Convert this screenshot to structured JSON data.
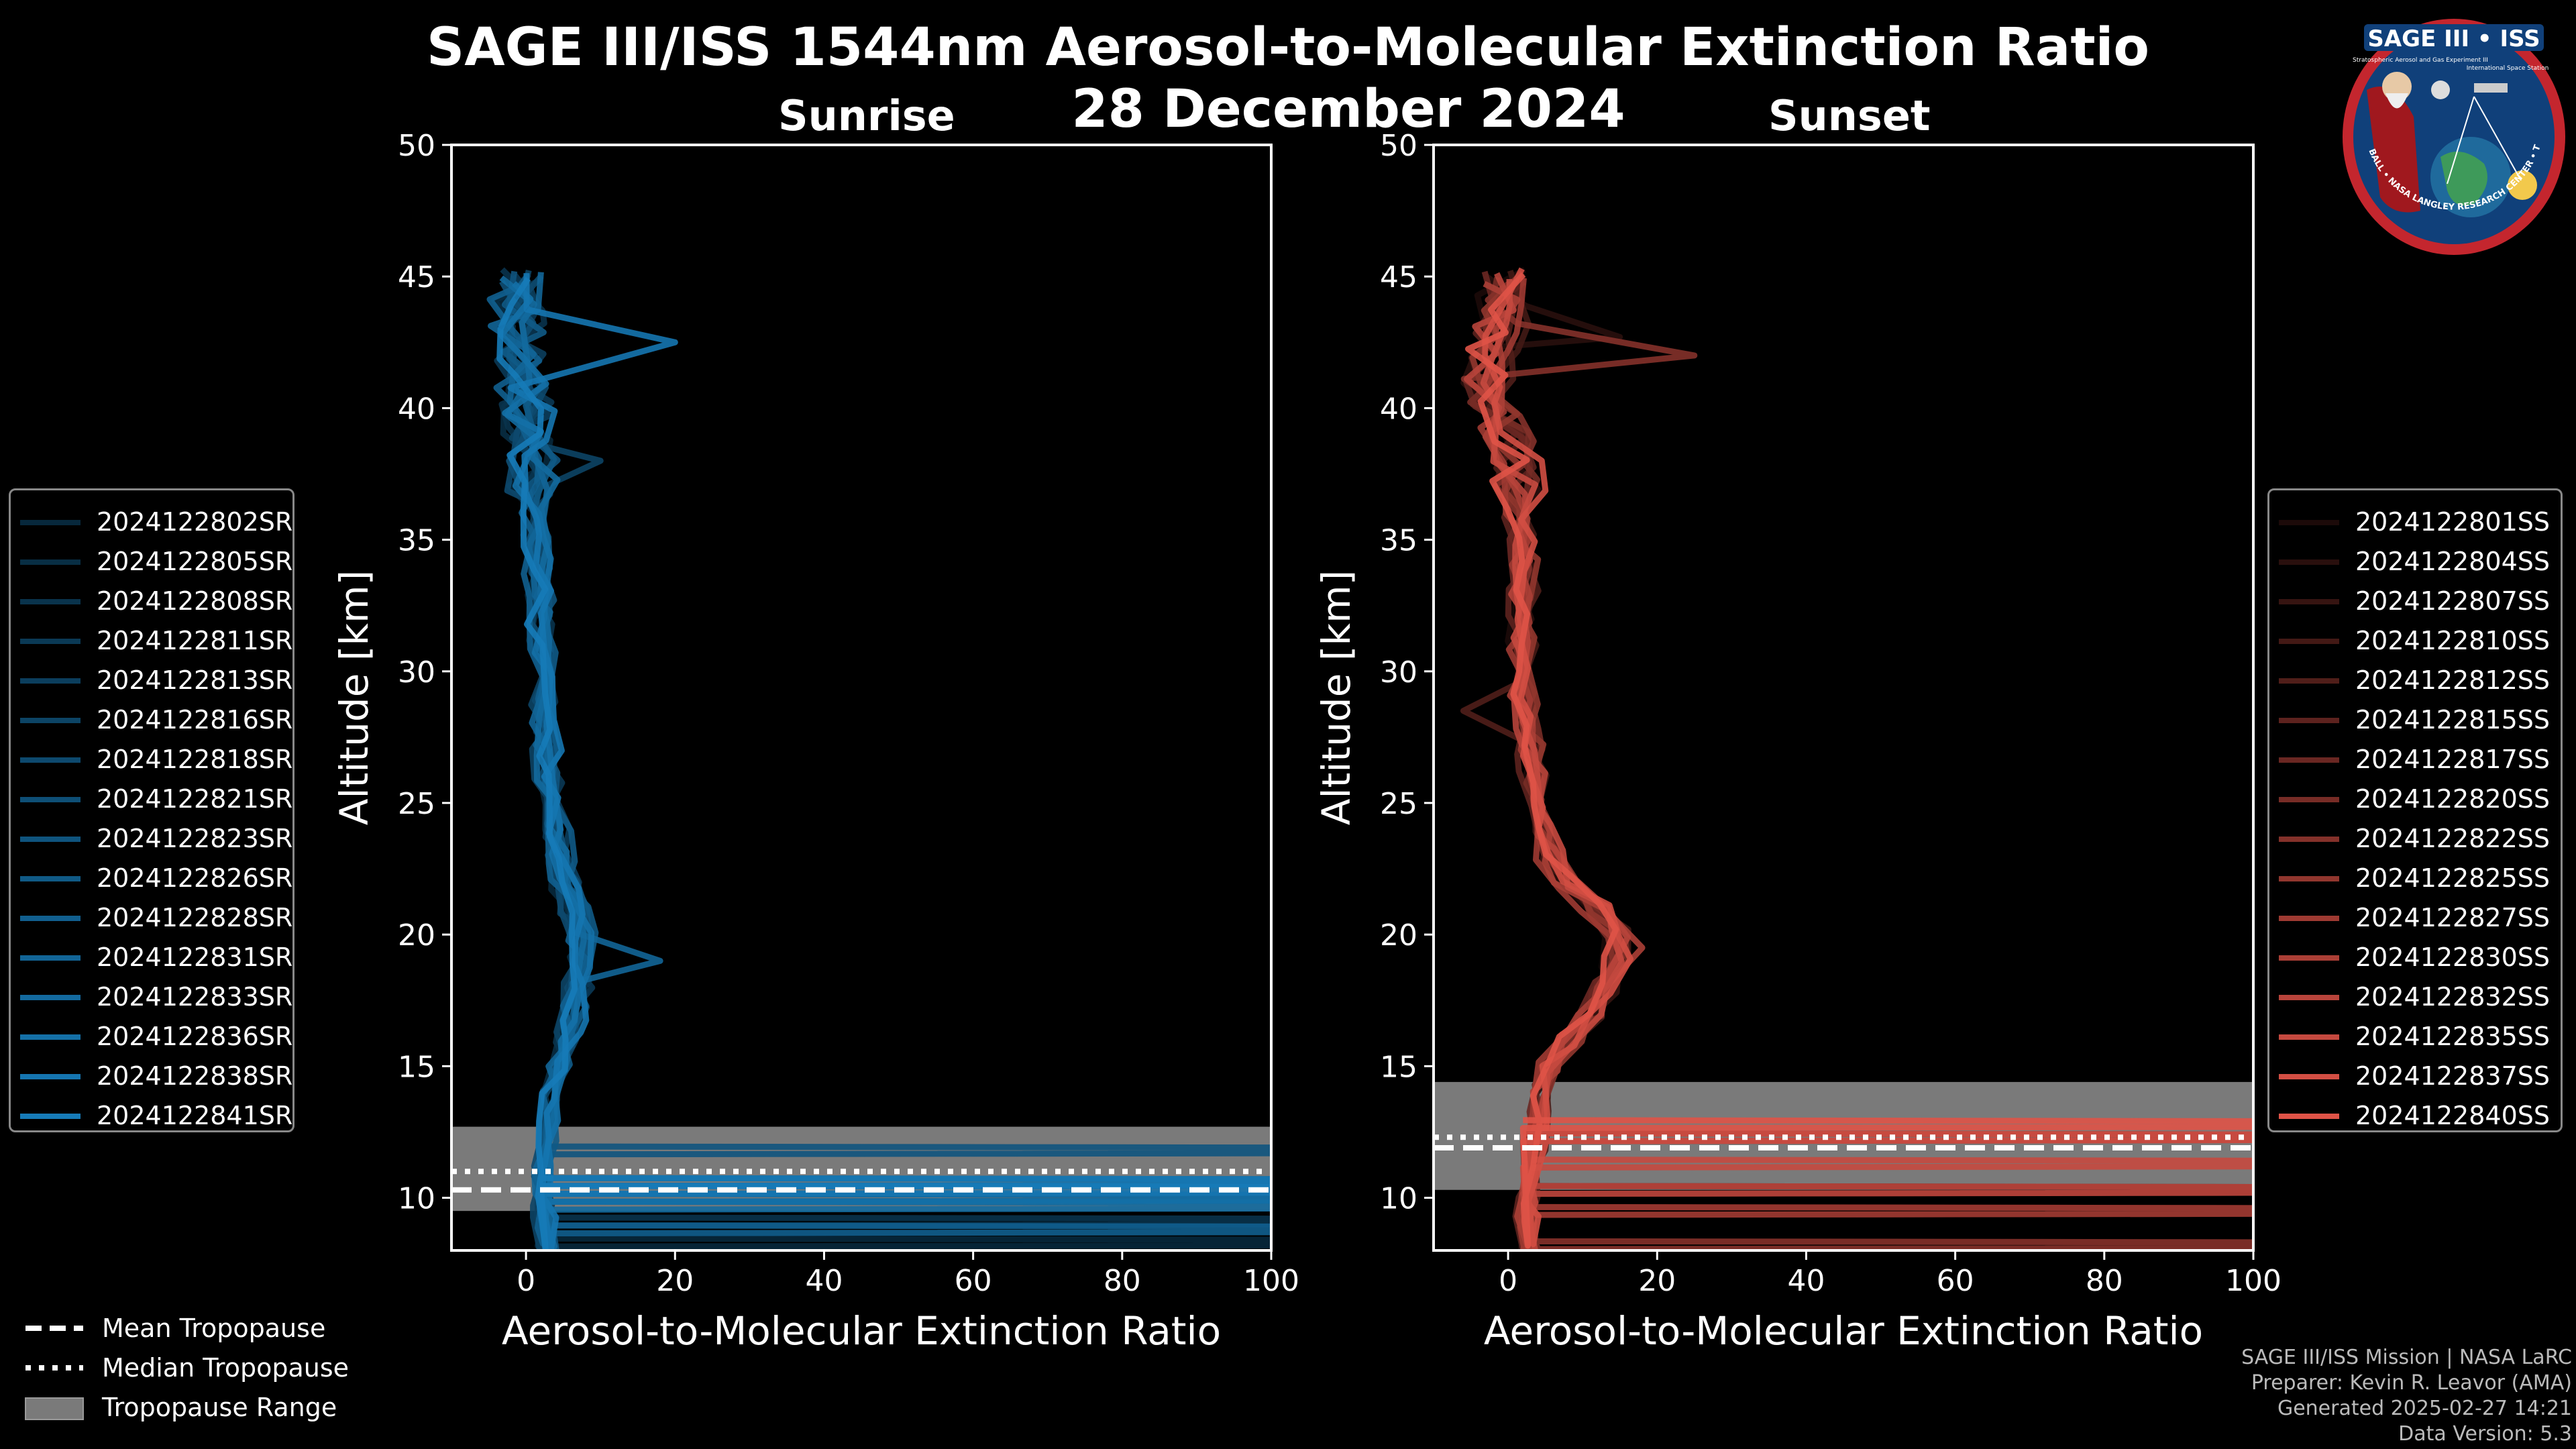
{
  "title": {
    "line1": "SAGE III/ISS 1544nm Aerosol-to-Molecular Extinction Ratio",
    "line2": "28 December 2024"
  },
  "logo": {
    "text": "SAGE III • ISS",
    "subtitle": "Stratospheric Aerosol and Gas Experiment III",
    "subtitle2": "International Space Station",
    "ring_text": "BALL • NASA LANGLEY RESEARCH CENTER • TAS-I • ESA"
  },
  "colors": {
    "sunrise_line": "#1a8fd6",
    "sunset_line": "#e8564a",
    "tropopause_range": "#7a7a7a",
    "background": "#000000"
  },
  "chart_data": [
    {
      "type": "line",
      "title": "Sunrise",
      "xlabel": "Aerosol-to-Molecular Extinction Ratio",
      "ylabel": "Altitude [km]",
      "xlim": [
        -10,
        100
      ],
      "ylim": [
        8,
        50
      ],
      "xticks": [
        0,
        20,
        40,
        60,
        80,
        100
      ],
      "yticks": [
        10,
        15,
        20,
        25,
        30,
        35,
        40,
        45,
        50
      ],
      "legend_placement": "left outside",
      "series_names": [
        "2024122802SR",
        "2024122805SR",
        "2024122808SR",
        "2024122811SR",
        "2024122813SR",
        "2024122816SR",
        "2024122818SR",
        "2024122821SR",
        "2024122823SR",
        "2024122826SR",
        "2024122828SR",
        "2024122831SR",
        "2024122833SR",
        "2024122836SR",
        "2024122838SR",
        "2024122841SR"
      ],
      "profile_template": {
        "altitude_km": [
          8,
          9,
          10,
          11,
          12,
          13,
          14,
          15,
          16,
          17,
          18,
          19,
          20,
          21,
          22,
          23,
          24,
          25,
          26,
          27,
          28,
          29,
          30,
          31,
          32,
          33,
          34,
          35,
          36,
          37,
          38,
          39,
          40,
          41,
          42,
          43,
          44,
          45
        ],
        "ratio": [
          3,
          2.5,
          2,
          2.2,
          2.5,
          3,
          3.5,
          4.5,
          5.5,
          6.5,
          7,
          7.5,
          7.5,
          6.5,
          5.5,
          4.5,
          4,
          3.5,
          3,
          2.8,
          2.6,
          2.4,
          2.2,
          2.1,
          2,
          2,
          1.8,
          1.5,
          1.5,
          1.2,
          1,
          0.5,
          0,
          -0.5,
          -1,
          -1,
          -1,
          -1
        ]
      },
      "spikes": [
        {
          "series": "2024122831SR",
          "altitude_km": 19,
          "ratio": 18
        },
        {
          "series": "2024122838SR",
          "altitude_km": 42.5,
          "ratio": 20
        },
        {
          "series": "2024122816SR",
          "altitude_km": 38,
          "ratio": 10
        }
      ],
      "low_altitude_spikes_km": [
        8.3,
        8.8,
        9.1,
        9.7,
        10.0,
        10.3,
        10.6,
        11.0,
        11.8
      ],
      "tropopause": {
        "mean_km": 10.3,
        "median_km": 11.0,
        "range_km": [
          9.5,
          12.7
        ]
      }
    },
    {
      "type": "line",
      "title": "Sunset",
      "xlabel": "Aerosol-to-Molecular Extinction Ratio",
      "ylabel": "Altitude [km]",
      "xlim": [
        -10,
        100
      ],
      "ylim": [
        8,
        50
      ],
      "xticks": [
        0,
        20,
        40,
        60,
        80,
        100
      ],
      "yticks": [
        10,
        15,
        20,
        25,
        30,
        35,
        40,
        45,
        50
      ],
      "legend_placement": "right outside",
      "series_names": [
        "2024122801SS",
        "2024122804SS",
        "2024122807SS",
        "2024122810SS",
        "2024122812SS",
        "2024122815SS",
        "2024122817SS",
        "2024122820SS",
        "2024122822SS",
        "2024122825SS",
        "2024122827SS",
        "2024122830SS",
        "2024122832SS",
        "2024122835SS",
        "2024122837SS",
        "2024122840SS"
      ],
      "profile_template": {
        "altitude_km": [
          8,
          9,
          10,
          11,
          12,
          13,
          14,
          15,
          16,
          17,
          18,
          19,
          20,
          21,
          22,
          23,
          24,
          25,
          26,
          27,
          28,
          29,
          30,
          31,
          32,
          33,
          34,
          35,
          36,
          37,
          38,
          39,
          40,
          41,
          42,
          43,
          44,
          45
        ],
        "ratio": [
          3,
          2.5,
          2.5,
          3,
          3.5,
          4,
          4.5,
          5.5,
          8,
          11,
          13,
          14.5,
          14.5,
          12,
          8,
          5.5,
          4.5,
          4,
          3.5,
          3,
          2.5,
          2,
          1.8,
          2,
          2.2,
          2,
          2,
          2,
          1.5,
          1.2,
          1,
          0,
          -2,
          -3,
          -2,
          -1,
          -0.5,
          0
        ]
      },
      "spikes": [
        {
          "series": "2024122822SS",
          "altitude_km": 42,
          "ratio": 25
        },
        {
          "series": "2024122812SS",
          "altitude_km": 28.5,
          "ratio": -6
        },
        {
          "series": "2024122830SS",
          "altitude_km": 19.5,
          "ratio": 18
        },
        {
          "series": "2024122804SS",
          "altitude_km": 42.7,
          "ratio": 15
        }
      ],
      "low_altitude_spikes_km": [
        8.2,
        8.8,
        9.5,
        9.9,
        10.3,
        11.3,
        12.3,
        12.8
      ],
      "tropopause": {
        "mean_km": 11.9,
        "median_km": 12.3,
        "range_km": [
          10.3,
          14.4
        ]
      }
    }
  ],
  "tropopause_legend": {
    "mean": "Mean Tropopause",
    "median": "Median Tropopause",
    "range": "Tropopause Range"
  },
  "credits": {
    "line1": "SAGE III/ISS Mission | NASA LaRC",
    "line2": "Preparer: Kevin R. Leavor (AMA)",
    "line3": "Generated 2025-02-27 14:21",
    "line4": "Data Version: 5.3"
  }
}
